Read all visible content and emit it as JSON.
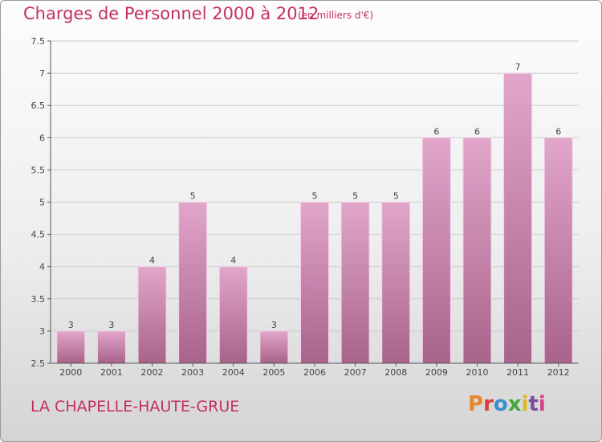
{
  "header": {
    "title": "Charges de Personnel 2000 à 2012",
    "subtitle": "(en milliers d'€)"
  },
  "footer": {
    "place": "LA CHAPELLE-HAUTE-GRUE",
    "brand": "Proxiti",
    "brand_colors": [
      "#e8862a",
      "#d63f3f",
      "#3a8fd0",
      "#4aa63c",
      "#e0b81c",
      "#7a4ea0",
      "#d63f8a"
    ]
  },
  "colors": {
    "bar_top": "#e2a6cb",
    "bar_bottom": "#a8638b",
    "accent": "#c42e64",
    "grid": "#cccccc"
  },
  "chart_data": {
    "type": "bar",
    "title": "Charges de Personnel 2000 à 2012",
    "subtitle": "(en milliers d'€)",
    "categories": [
      "2000",
      "2001",
      "2002",
      "2003",
      "2004",
      "2005",
      "2006",
      "2007",
      "2008",
      "2009",
      "2010",
      "2011",
      "2012"
    ],
    "values": [
      3,
      3,
      4,
      5,
      4,
      3,
      5,
      5,
      5,
      6,
      6,
      7,
      6
    ],
    "ylim": [
      2.5,
      7.5
    ],
    "yticks": [
      "2.5",
      "3",
      "3.5",
      "4",
      "4.5",
      "5",
      "5.5",
      "6",
      "6.5",
      "7",
      "7.5"
    ],
    "grid": true
  }
}
